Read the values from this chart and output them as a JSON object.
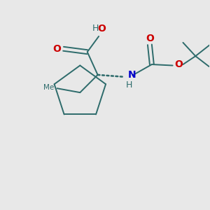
{
  "background_color": "#e8e8e8",
  "bond_color": "#2d6b6b",
  "oxygen_color": "#cc0000",
  "nitrogen_color": "#0000cc",
  "figsize": [
    3.0,
    3.0
  ],
  "dpi": 100,
  "xlim": [
    0,
    10
  ],
  "ylim": [
    0,
    10
  ]
}
